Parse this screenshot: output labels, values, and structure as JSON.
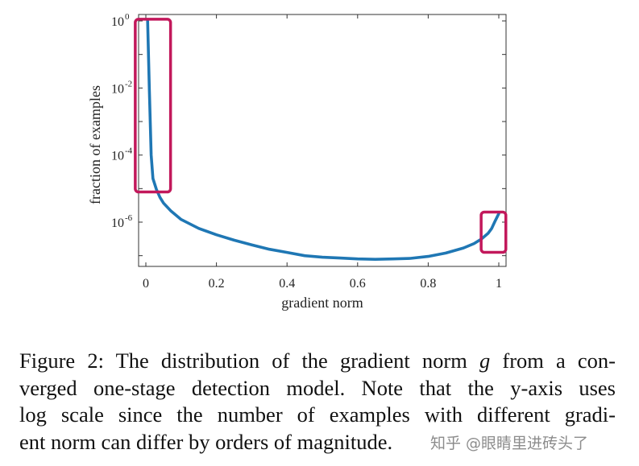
{
  "chart_data": {
    "type": "line",
    "title": "",
    "xlabel": "gradient norm",
    "ylabel": "fraction of examples",
    "xlim": [
      -0.02,
      1.02
    ],
    "ylim_log10": [
      -7.3,
      0.1
    ],
    "y_scale": "log",
    "x_ticks": [
      0,
      0.2,
      0.4,
      0.6,
      0.8,
      1
    ],
    "x_tick_labels": [
      "0",
      "0.2",
      "0.4",
      "0.6",
      "0.8",
      "1"
    ],
    "y_ticks_log10": [
      0,
      -2,
      -4,
      -6
    ],
    "y_tick_labels": [
      {
        "base": "10",
        "exp": "0"
      },
      {
        "base": "10",
        "exp": "-2"
      },
      {
        "base": "10",
        "exp": "-4"
      },
      {
        "base": "10",
        "exp": "-6"
      }
    ],
    "grid": false,
    "series": [
      {
        "color": "#1f77b4",
        "x": [
          0.005,
          0.01,
          0.015,
          0.02,
          0.03,
          0.04,
          0.05,
          0.07,
          0.1,
          0.15,
          0.2,
          0.25,
          0.3,
          0.35,
          0.4,
          0.45,
          0.5,
          0.55,
          0.6,
          0.65,
          0.7,
          0.75,
          0.8,
          0.85,
          0.9,
          0.93,
          0.95,
          0.97,
          0.98,
          0.99,
          1.0
        ],
        "y": [
          1.0,
          0.008,
          0.0001,
          2e-05,
          9.5e-06,
          5.5e-06,
          3.7e-06,
          2.2e-06,
          1.2e-06,
          6.5e-07,
          4.2e-07,
          2.9e-07,
          2.1e-07,
          1.55e-07,
          1.25e-07,
          1e-07,
          9e-08,
          8.5e-08,
          8e-08,
          7.8e-08,
          8e-08,
          8.3e-08,
          9.5e-08,
          1.2e-07,
          1.7e-07,
          2.3e-07,
          3.1e-07,
          4.7e-07,
          6.5e-07,
          1.1e-06,
          1.8e-06
        ]
      }
    ],
    "annotations": [
      {
        "shape": "rounded-rect",
        "color": "#c2185b",
        "x_range": [
          -0.03,
          0.07
        ],
        "log10_y_range": [
          -5.1,
          0.05
        ]
      },
      {
        "shape": "rounded-rect",
        "color": "#c2185b",
        "x_range": [
          0.95,
          1.02
        ],
        "log10_y_range": [
          -6.9,
          -5.7
        ]
      }
    ]
  },
  "caption": {
    "lines": [
      [
        "Figure 2: The distribution of the gradient norm ",
        "g",
        " from a con-"
      ],
      [
        "verged one-stage detection model. Note that the y-axis uses"
      ],
      [
        "log scale since the number of examples with different gradi-"
      ],
      [
        "ent norm can differ by orders of magnitude."
      ]
    ]
  },
  "watermark": "知乎 @眼睛里进砖头了"
}
